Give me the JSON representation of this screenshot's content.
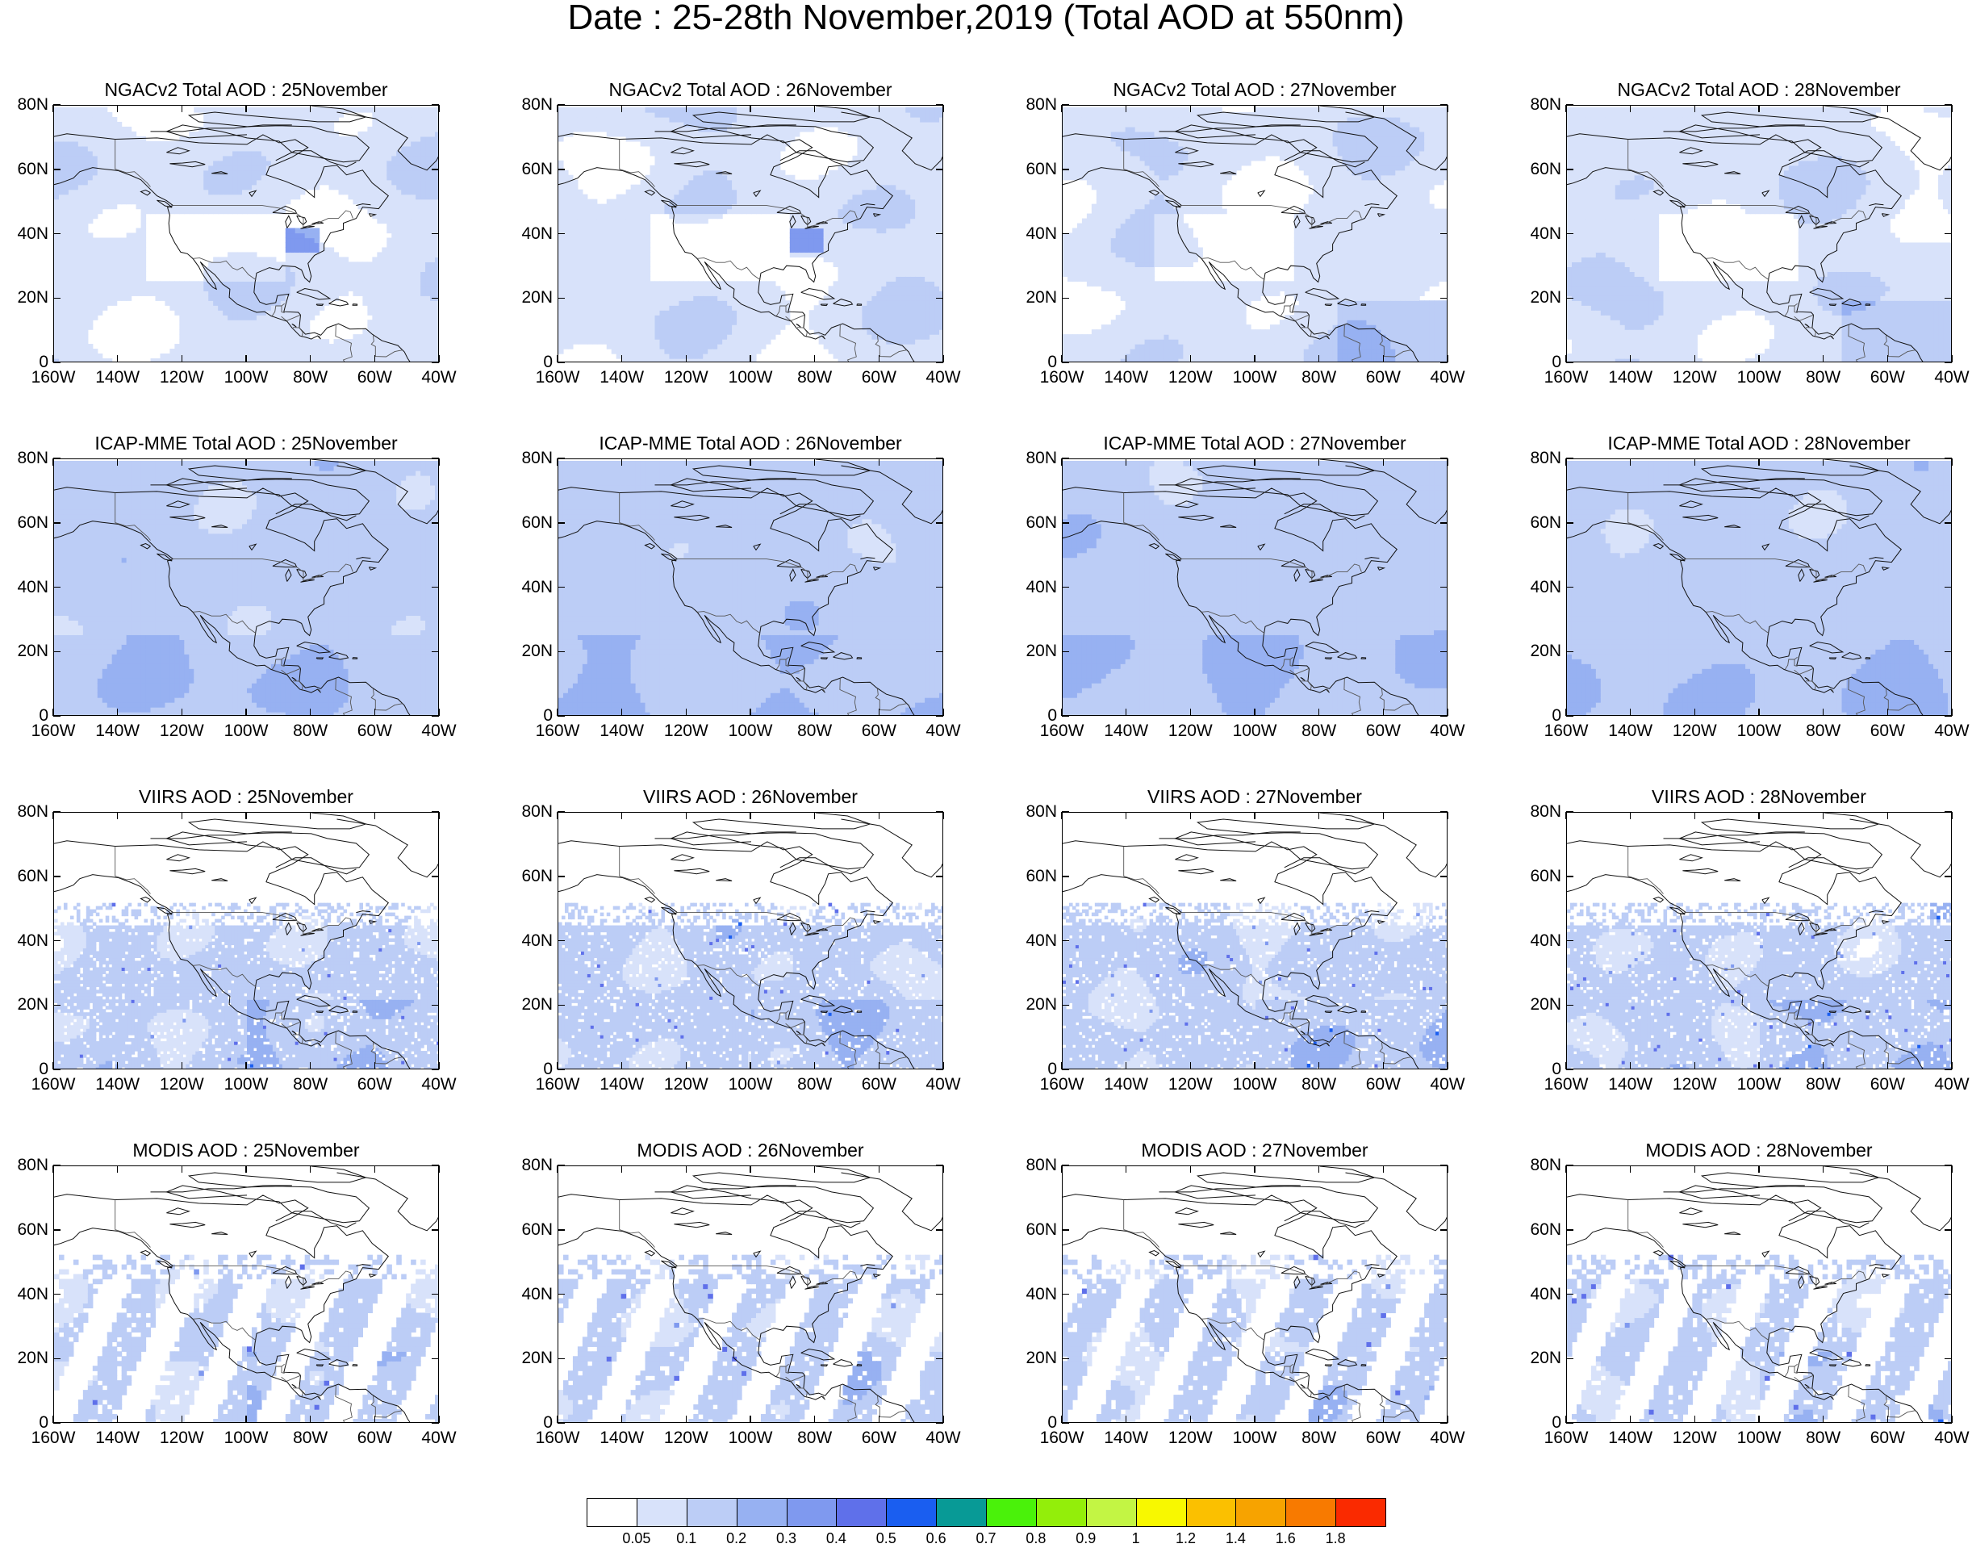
{
  "title": "Date : 25-28th November,2019 (Total AOD at 550nm)",
  "panels": [
    {
      "title": "NGACv2 Total AOD : 25November",
      "model": "NGACv2",
      "day": 0,
      "base": 0.06
    },
    {
      "title": "NGACv2 Total AOD : 26November",
      "model": "NGACv2",
      "day": 1,
      "base": 0.06
    },
    {
      "title": "NGACv2 Total AOD : 27November",
      "model": "NGACv2",
      "day": 2,
      "base": 0.07
    },
    {
      "title": "NGACv2 Total AOD : 28November",
      "model": "NGACv2",
      "day": 3,
      "base": 0.08
    },
    {
      "title": "ICAP-MME Total AOD : 25November",
      "model": "ICAP",
      "day": 0,
      "base": 0.12
    },
    {
      "title": "ICAP-MME Total AOD : 26November",
      "model": "ICAP",
      "day": 1,
      "base": 0.12
    },
    {
      "title": "ICAP-MME Total AOD : 27November",
      "model": "ICAP",
      "day": 2,
      "base": 0.12
    },
    {
      "title": "ICAP-MME Total AOD : 28November",
      "model": "ICAP",
      "day": 3,
      "base": 0.12
    },
    {
      "title": "VIIRS AOD : 25November",
      "model": "VIIRS",
      "day": 0,
      "base": 0.05
    },
    {
      "title": "VIIRS AOD : 26November",
      "model": "VIIRS",
      "day": 1,
      "base": 0.05
    },
    {
      "title": "VIIRS AOD : 27November",
      "model": "VIIRS",
      "day": 2,
      "base": 0.05
    },
    {
      "title": "VIIRS AOD : 28November",
      "model": "VIIRS",
      "day": 3,
      "base": 0.05
    },
    {
      "title": "MODIS AOD : 25November",
      "model": "MODIS",
      "day": 0,
      "base": 0.07
    },
    {
      "title": "MODIS AOD : 26November",
      "model": "MODIS",
      "day": 1,
      "base": 0.07
    },
    {
      "title": "MODIS AOD : 27November",
      "model": "MODIS",
      "day": 2,
      "base": 0.07
    },
    {
      "title": "MODIS AOD : 28November",
      "model": "MODIS",
      "day": 3,
      "base": 0.07
    }
  ],
  "axes": {
    "lon_range": [
      -160,
      -40
    ],
    "lat_range": [
      0,
      80
    ],
    "lon_ticks": [
      {
        "value": -160,
        "label": "160W"
      },
      {
        "value": -140,
        "label": "140W"
      },
      {
        "value": -120,
        "label": "120W"
      },
      {
        "value": -100,
        "label": "100W"
      },
      {
        "value": -80,
        "label": "80W"
      },
      {
        "value": -60,
        "label": "60W"
      },
      {
        "value": -40,
        "label": "40W"
      }
    ],
    "lat_ticks": [
      {
        "value": 80,
        "label": "80N"
      },
      {
        "value": 60,
        "label": "60N"
      },
      {
        "value": 40,
        "label": "40N"
      },
      {
        "value": 20,
        "label": "20N"
      },
      {
        "value": 0,
        "label": "0"
      }
    ]
  },
  "colorbar": {
    "colors": [
      "#ffffff",
      "#d8e2fa",
      "#bccdf6",
      "#97b1f2",
      "#7f99ef",
      "#5f70ea",
      "#1a5ef0",
      "#089a96",
      "#4af20a",
      "#93ee0a",
      "#c3f544",
      "#f8f800",
      "#fbc000",
      "#f7a300",
      "#f87a00",
      "#fa2a00"
    ],
    "labels": [
      "0.05",
      "0.1",
      "0.2",
      "0.3",
      "0.4",
      "0.5",
      "0.6",
      "0.7",
      "0.8",
      "0.9",
      "1",
      "1.2",
      "1.4",
      "1.6",
      "1.8"
    ],
    "levels": [
      0.05,
      0.1,
      0.2,
      0.3,
      0.4,
      0.5,
      0.6,
      0.7,
      0.8,
      0.9,
      1,
      1.2,
      1.4,
      1.6,
      1.8
    ]
  }
}
